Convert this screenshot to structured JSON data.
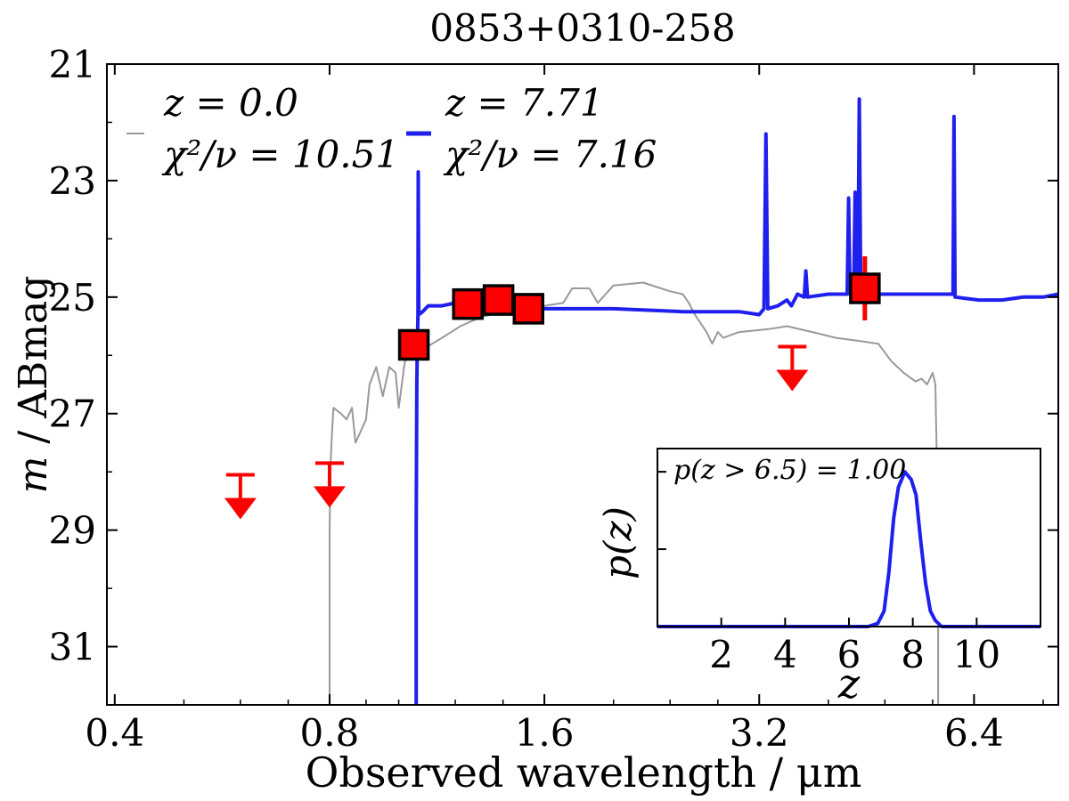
{
  "chart_data": [
    {
      "type": "line",
      "title": "0853+0310-258",
      "xlabel_main": "Observed wavelength / ",
      "xlabel_unit": "μm",
      "ylabel_var": "m",
      "ylabel_rest": " / ABmag",
      "xscale": "log2",
      "xlim": [
        0.39,
        8.4
      ],
      "ylim": [
        32.0,
        21.0
      ],
      "xticks": [
        0.4,
        0.8,
        1.6,
        3.2,
        6.4
      ],
      "xtick_labels": [
        "0.4",
        "0.8",
        "1.6",
        "3.2",
        "6.4"
      ],
      "yticks": [
        21,
        23,
        25,
        27,
        29,
        31
      ],
      "ytick_labels": [
        "21",
        "23",
        "25",
        "27",
        "29",
        "31"
      ],
      "legend": {
        "location": "top-left",
        "entries": [
          {
            "series": "z0",
            "line1": "z = 0.0",
            "line2": "χ²/ν = 10.51"
          },
          {
            "series": "z771",
            "line1": "z = 7.71",
            "line2": "χ²/ν = 7.16"
          }
        ]
      },
      "series": [
        {
          "name": "z0",
          "label": "z = 0.0 template",
          "color": "#999999",
          "points": [
            [
              0.8,
              32.0
            ],
            [
              0.8,
              29.0
            ],
            [
              0.802,
              28.0
            ],
            [
              0.805,
              27.5
            ],
            [
              0.81,
              26.9
            ],
            [
              0.83,
              27.0
            ],
            [
              0.845,
              27.1
            ],
            [
              0.86,
              26.9
            ],
            [
              0.87,
              27.5
            ],
            [
              0.9,
              27.1
            ],
            [
              0.91,
              26.5
            ],
            [
              0.93,
              26.2
            ],
            [
              0.95,
              26.7
            ],
            [
              0.97,
              26.2
            ],
            [
              0.99,
              26.3
            ],
            [
              1.0,
              26.9
            ],
            [
              1.02,
              26.1
            ],
            [
              1.05,
              26.0
            ],
            [
              1.08,
              25.9
            ],
            [
              1.15,
              25.7
            ],
            [
              1.22,
              25.5
            ],
            [
              1.3,
              25.35
            ],
            [
              1.4,
              25.25
            ],
            [
              1.5,
              25.15
            ],
            [
              1.6,
              25.15
            ],
            [
              1.7,
              25.1
            ],
            [
              1.75,
              24.85
            ],
            [
              1.85,
              24.85
            ],
            [
              1.9,
              25.1
            ],
            [
              2.0,
              24.8
            ],
            [
              2.2,
              24.75
            ],
            [
              2.4,
              24.9
            ],
            [
              2.5,
              24.95
            ],
            [
              2.55,
              25.1
            ],
            [
              2.6,
              25.3
            ],
            [
              2.7,
              25.6
            ],
            [
              2.75,
              25.8
            ],
            [
              2.8,
              25.6
            ],
            [
              2.85,
              25.7
            ],
            [
              3.0,
              25.6
            ],
            [
              3.3,
              25.55
            ],
            [
              3.5,
              25.5
            ],
            [
              3.8,
              25.6
            ],
            [
              4.1,
              25.7
            ],
            [
              4.4,
              25.75
            ],
            [
              4.7,
              25.8
            ],
            [
              4.9,
              26.1
            ],
            [
              5.1,
              26.3
            ],
            [
              5.3,
              26.45
            ],
            [
              5.4,
              26.4
            ],
            [
              5.5,
              26.5
            ],
            [
              5.6,
              26.3
            ],
            [
              5.65,
              26.5
            ],
            [
              5.68,
              28.0
            ],
            [
              5.7,
              29.5
            ],
            [
              5.7,
              32.0
            ]
          ]
        },
        {
          "name": "z771",
          "label": "z = 7.71 template",
          "color": "#1f1fee",
          "points": [
            [
              1.058,
              32.0
            ],
            [
              1.058,
              29.0
            ],
            [
              1.06,
              26.5
            ],
            [
              1.062,
              25.8
            ],
            [
              1.064,
              25.3
            ],
            [
              1.065,
              22.85
            ],
            [
              1.067,
              25.3
            ],
            [
              1.08,
              25.25
            ],
            [
              1.1,
              25.15
            ],
            [
              1.15,
              25.15
            ],
            [
              1.2,
              25.1
            ],
            [
              1.3,
              25.15
            ],
            [
              1.4,
              25.15
            ],
            [
              1.5,
              25.2
            ],
            [
              1.6,
              25.2
            ],
            [
              1.8,
              25.2
            ],
            [
              2.0,
              25.2
            ],
            [
              2.5,
              25.25
            ],
            [
              3.0,
              25.25
            ],
            [
              3.2,
              25.3
            ],
            [
              3.25,
              25.2
            ],
            [
              3.27,
              22.2
            ],
            [
              3.29,
              25.2
            ],
            [
              3.4,
              25.15
            ],
            [
              3.5,
              25.05
            ],
            [
              3.55,
              25.15
            ],
            [
              3.62,
              24.95
            ],
            [
              3.7,
              25.0
            ],
            [
              3.72,
              24.55
            ],
            [
              3.74,
              25.0
            ],
            [
              4.0,
              24.95
            ],
            [
              4.25,
              24.95
            ],
            [
              4.27,
              23.3
            ],
            [
              4.29,
              24.95
            ],
            [
              4.34,
              24.95
            ],
            [
              4.36,
              23.2
            ],
            [
              4.38,
              24.95
            ],
            [
              4.4,
              24.9
            ],
            [
              4.42,
              21.6
            ],
            [
              4.44,
              24.95
            ],
            [
              4.6,
              24.95
            ],
            [
              4.8,
              24.95
            ],
            [
              5.0,
              24.95
            ],
            [
              5.5,
              24.95
            ],
            [
              5.98,
              24.95
            ],
            [
              6.0,
              21.9
            ],
            [
              6.02,
              25.0
            ],
            [
              6.5,
              25.05
            ],
            [
              7.0,
              25.05
            ],
            [
              7.5,
              25.0
            ],
            [
              8.0,
              25.0
            ],
            [
              8.4,
              24.95
            ]
          ]
        }
      ],
      "detections": {
        "color": "#ff0000",
        "points": [
          {
            "x": 1.05,
            "y": 25.82,
            "err": 0.08
          },
          {
            "x": 1.25,
            "y": 25.12,
            "err": 0.08
          },
          {
            "x": 1.38,
            "y": 25.05,
            "err": 0.08
          },
          {
            "x": 1.52,
            "y": 25.2,
            "err": 0.08
          },
          {
            "x": 4.5,
            "y": 24.85,
            "err": 0.55
          }
        ]
      },
      "upper_limits": {
        "color": "#ff0000",
        "points": [
          {
            "x": 0.6,
            "y": 28.05
          },
          {
            "x": 0.8,
            "y": 27.85
          },
          {
            "x": 3.56,
            "y": 25.85
          }
        ]
      }
    },
    {
      "type": "line",
      "name": "inset",
      "annotation": "p(z > 6.5) = 1.00",
      "xlabel": "z",
      "ylabel": "p(z)",
      "xlim": [
        0.0,
        12.0
      ],
      "xticks": [
        2,
        4,
        6,
        8,
        10
      ],
      "xtick_labels": [
        "2",
        "4",
        "6",
        "8",
        "10"
      ],
      "ylim": [
        0.0,
        1.15
      ],
      "yticks": [
        0.5,
        1.0
      ],
      "color": "#1f1fee",
      "points": [
        [
          0.0,
          0.0
        ],
        [
          6.6,
          0.0
        ],
        [
          6.9,
          0.02
        ],
        [
          7.1,
          0.1
        ],
        [
          7.25,
          0.35
        ],
        [
          7.4,
          0.7
        ],
        [
          7.55,
          0.9
        ],
        [
          7.75,
          1.0
        ],
        [
          7.95,
          0.95
        ],
        [
          8.1,
          0.85
        ],
        [
          8.25,
          0.55
        ],
        [
          8.4,
          0.28
        ],
        [
          8.55,
          0.1
        ],
        [
          8.7,
          0.04
        ],
        [
          8.9,
          0.0
        ],
        [
          12.0,
          0.0
        ]
      ]
    }
  ]
}
